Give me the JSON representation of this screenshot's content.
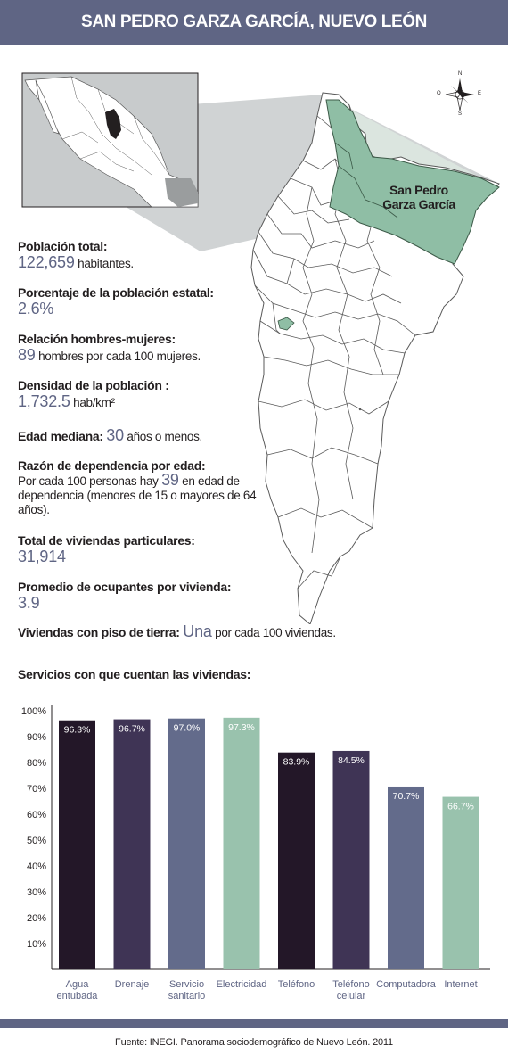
{
  "header": {
    "title": "SAN PEDRO GARZA GARCÍA, NUEVO LEÓN"
  },
  "map": {
    "label_line1": "San Pedro",
    "label_line2": "Garza García",
    "highlight_color": "#8fbea5",
    "compass": {
      "n": "N",
      "s": "S",
      "e": "E",
      "o": "O"
    }
  },
  "stats": {
    "poblacion": {
      "label": "Población total:",
      "value": "122,659",
      "unit": " habitantes."
    },
    "porcentaje": {
      "label": "Porcentaje de la población estatal:",
      "value": "2.6%"
    },
    "relacion": {
      "label": "Relación hombres-mujeres:",
      "value": "89",
      "text": " hombres por cada 100 mujeres."
    },
    "densidad": {
      "label": "Densidad de la población :",
      "value": "1,732.5",
      "unit": " hab/km²"
    },
    "edad": {
      "label": "Edad mediana: ",
      "value": "30",
      "text": " años o menos."
    },
    "dependencia": {
      "label": "Razón de dependencia por edad:",
      "text_before": "Por cada 100 personas hay ",
      "value": "39",
      "text_after": " en edad de dependencia (menores de 15 o mayores de 64 años)."
    },
    "viviendas": {
      "label": "Total de viviendas particulares:",
      "value": "31,914"
    },
    "ocupantes": {
      "label": "Promedio de ocupantes por vivienda:",
      "value": "3.9"
    },
    "piso": {
      "label": "Viviendas con piso de tierra: ",
      "value": "Una",
      "text": " por cada 100 viviendas."
    }
  },
  "services_title": "Servicios con que cuentan las viviendas:",
  "chart_data": {
    "type": "bar",
    "categories": [
      "Agua entubada",
      "Drenaje",
      "Servicio sanitario",
      "Electricidad",
      "Teléfono",
      "Teléfono celular",
      "Computadora",
      "Internet"
    ],
    "values": [
      96.3,
      96.7,
      97.0,
      97.3,
      83.9,
      84.5,
      70.7,
      66.7
    ],
    "value_labels": [
      "96.3%",
      "96.7%",
      "97.0%",
      "97.3%",
      "83.9%",
      "84.5%",
      "70.7%",
      "66.7%"
    ],
    "colors": [
      "#231728",
      "#3f3455",
      "#636b8b",
      "#99c2ad",
      "#231728",
      "#3f3455",
      "#636b8b",
      "#99c2ad"
    ],
    "ylim": [
      0,
      100
    ],
    "yticks": [
      "10%",
      "20%",
      "30%",
      "40%",
      "50%",
      "60%",
      "70%",
      "80%",
      "90%",
      "100%"
    ],
    "grid": false
  },
  "footer": {
    "text": "Fuente:  INEGI. Panorama sociodemográfico de Nuevo León. 2011"
  }
}
